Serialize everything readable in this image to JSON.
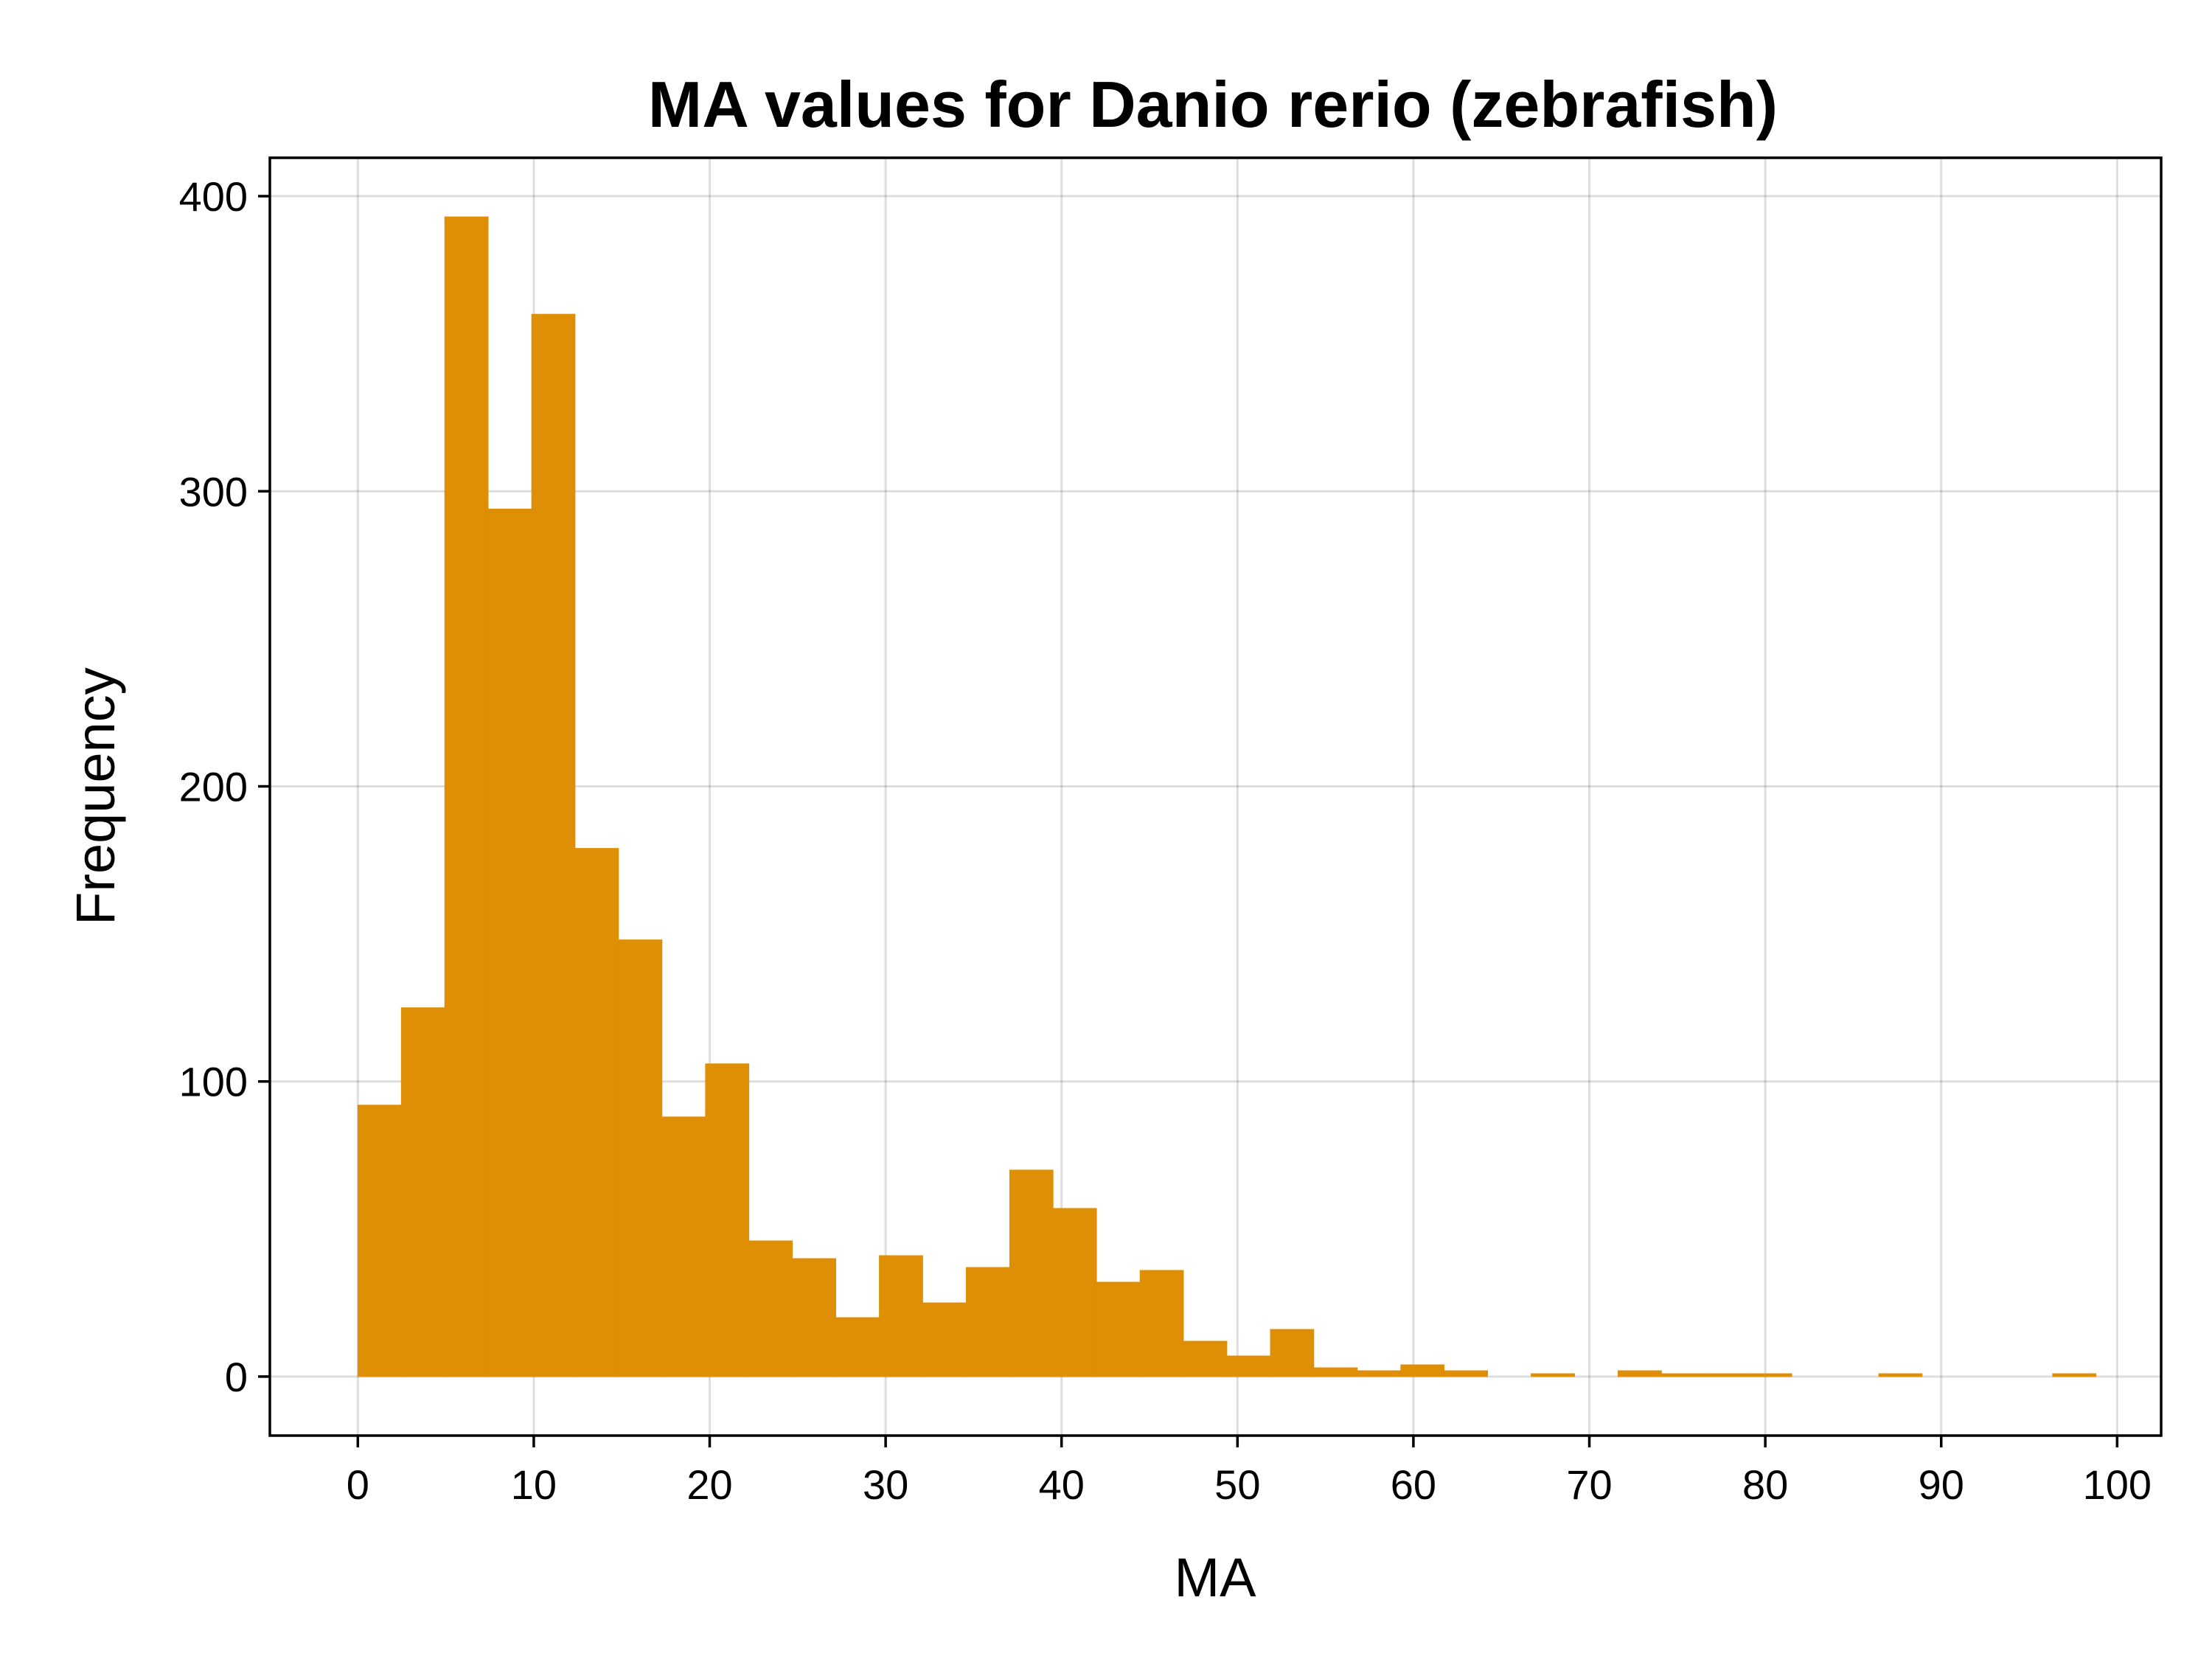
{
  "chart_data": {
    "type": "bar",
    "title": "MA values for Danio rerio (zebrafish)",
    "xlabel": "MA",
    "ylabel": "Frequency",
    "xlim": [
      -5,
      102.5
    ],
    "ylim": [
      -20,
      413
    ],
    "grid": true,
    "bar_color": "#de8f05",
    "bin_width": 2.47,
    "bins": [
      {
        "x0": 0.0,
        "value": 92
      },
      {
        "x0": 2.47,
        "value": 125
      },
      {
        "x0": 4.94,
        "value": 393
      },
      {
        "x0": 7.41,
        "value": 294
      },
      {
        "x0": 9.88,
        "value": 360
      },
      {
        "x0": 12.35,
        "value": 179
      },
      {
        "x0": 14.82,
        "value": 148
      },
      {
        "x0": 17.29,
        "value": 88
      },
      {
        "x0": 19.76,
        "value": 106
      },
      {
        "x0": 22.23,
        "value": 46
      },
      {
        "x0": 24.7,
        "value": 40
      },
      {
        "x0": 27.17,
        "value": 20
      },
      {
        "x0": 29.64,
        "value": 41
      },
      {
        "x0": 32.11,
        "value": 25
      },
      {
        "x0": 34.58,
        "value": 37
      },
      {
        "x0": 37.05,
        "value": 70
      },
      {
        "x0": 39.52,
        "value": 57
      },
      {
        "x0": 41.99,
        "value": 32
      },
      {
        "x0": 44.46,
        "value": 36
      },
      {
        "x0": 46.93,
        "value": 12
      },
      {
        "x0": 49.4,
        "value": 7
      },
      {
        "x0": 51.87,
        "value": 16
      },
      {
        "x0": 54.34,
        "value": 3
      },
      {
        "x0": 56.81,
        "value": 2
      },
      {
        "x0": 59.28,
        "value": 4
      },
      {
        "x0": 61.75,
        "value": 2
      },
      {
        "x0": 64.22,
        "value": 0
      },
      {
        "x0": 66.69,
        "value": 1
      },
      {
        "x0": 69.16,
        "value": 0
      },
      {
        "x0": 71.63,
        "value": 2
      },
      {
        "x0": 74.1,
        "value": 1
      },
      {
        "x0": 76.57,
        "value": 1
      },
      {
        "x0": 79.04,
        "value": 1
      },
      {
        "x0": 81.51,
        "value": 0
      },
      {
        "x0": 83.98,
        "value": 0
      },
      {
        "x0": 86.45,
        "value": 1
      },
      {
        "x0": 88.92,
        "value": 0
      },
      {
        "x0": 91.39,
        "value": 0
      },
      {
        "x0": 93.86,
        "value": 0
      },
      {
        "x0": 96.33,
        "value": 1
      }
    ],
    "x_ticks": [
      0,
      10,
      20,
      30,
      40,
      50,
      60,
      70,
      80,
      90,
      100
    ],
    "x_tick_labels": [
      "0",
      "10",
      "20",
      "30",
      "40",
      "50",
      "60",
      "70",
      "80",
      "90",
      "100"
    ],
    "y_ticks": [
      0,
      100,
      200,
      300,
      400
    ],
    "y_tick_labels": [
      "0",
      "100",
      "200",
      "300",
      "400"
    ]
  }
}
